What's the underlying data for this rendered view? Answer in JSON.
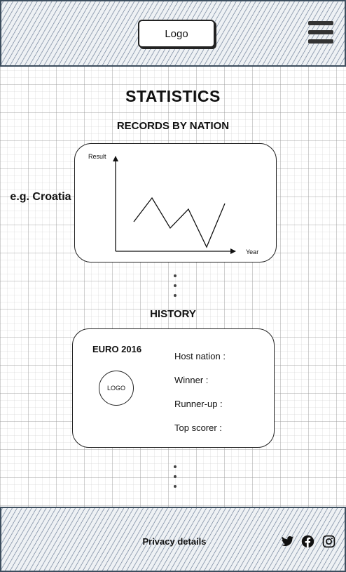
{
  "header": {
    "logo_label": "Logo",
    "menu_icon": "hamburger-menu-icon"
  },
  "main": {
    "title": "STATISTICS",
    "records": {
      "heading": "RECORDS BY NATION",
      "nation_example": "e.g. Croatia",
      "chart_data": {
        "type": "line",
        "title": "",
        "xlabel": "Year",
        "ylabel": "Result",
        "x": [
          1,
          2,
          3,
          4,
          5,
          6
        ],
        "values": [
          42,
          76,
          33,
          60,
          6,
          68
        ],
        "ylim": [
          0,
          135
        ],
        "xlim": [
          0,
          7
        ],
        "grid": false
      }
    },
    "history": {
      "heading": "HISTORY",
      "event_title": "EURO 2016",
      "logo_label": "LOGO",
      "fields": [
        "Host nation :",
        "Winner :",
        "Runner-up :",
        "Top scorer :"
      ]
    }
  },
  "footer": {
    "privacy_label": "Privacy details",
    "social_icons": [
      "twitter-icon",
      "facebook-icon",
      "instagram-icon"
    ]
  }
}
